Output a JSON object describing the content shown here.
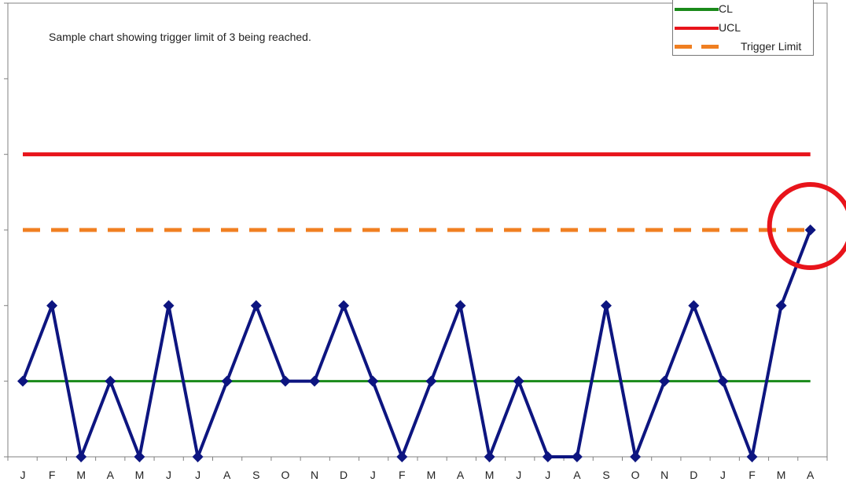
{
  "chart_data": {
    "type": "line",
    "annotation": "Sample chart showing trigger limit of 3 being reached.",
    "categories": [
      "J",
      "F",
      "M",
      "A",
      "M",
      "J",
      "J",
      "A",
      "S",
      "O",
      "N",
      "D",
      "J",
      "F",
      "M",
      "A",
      "M",
      "J",
      "J",
      "A",
      "S",
      "O",
      "N",
      "D",
      "J",
      "F",
      "M",
      "A"
    ],
    "series": [
      {
        "name": "",
        "color": "#0d1580",
        "marker": "diamond",
        "values": [
          1,
          2,
          0,
          1,
          0,
          2,
          0,
          1,
          2,
          1,
          1,
          2,
          1,
          0,
          1,
          2,
          0,
          1,
          0,
          0,
          2,
          0,
          1,
          2,
          1,
          0,
          2,
          3
        ]
      },
      {
        "name": "CL",
        "color": "#1a8a1a",
        "value": 1
      },
      {
        "name": "UCL",
        "color": "#e8141b",
        "value": 4
      },
      {
        "name": "Trigger Limit",
        "color": "#f07f21",
        "value": 3,
        "dashed": true
      }
    ],
    "highlight": {
      "category_index": 27,
      "color": "#e8141b"
    },
    "ylim": [
      0,
      6
    ],
    "legend": {
      "position": "top-right",
      "items": [
        "CL",
        "UCL",
        "Trigger Limit"
      ]
    }
  }
}
